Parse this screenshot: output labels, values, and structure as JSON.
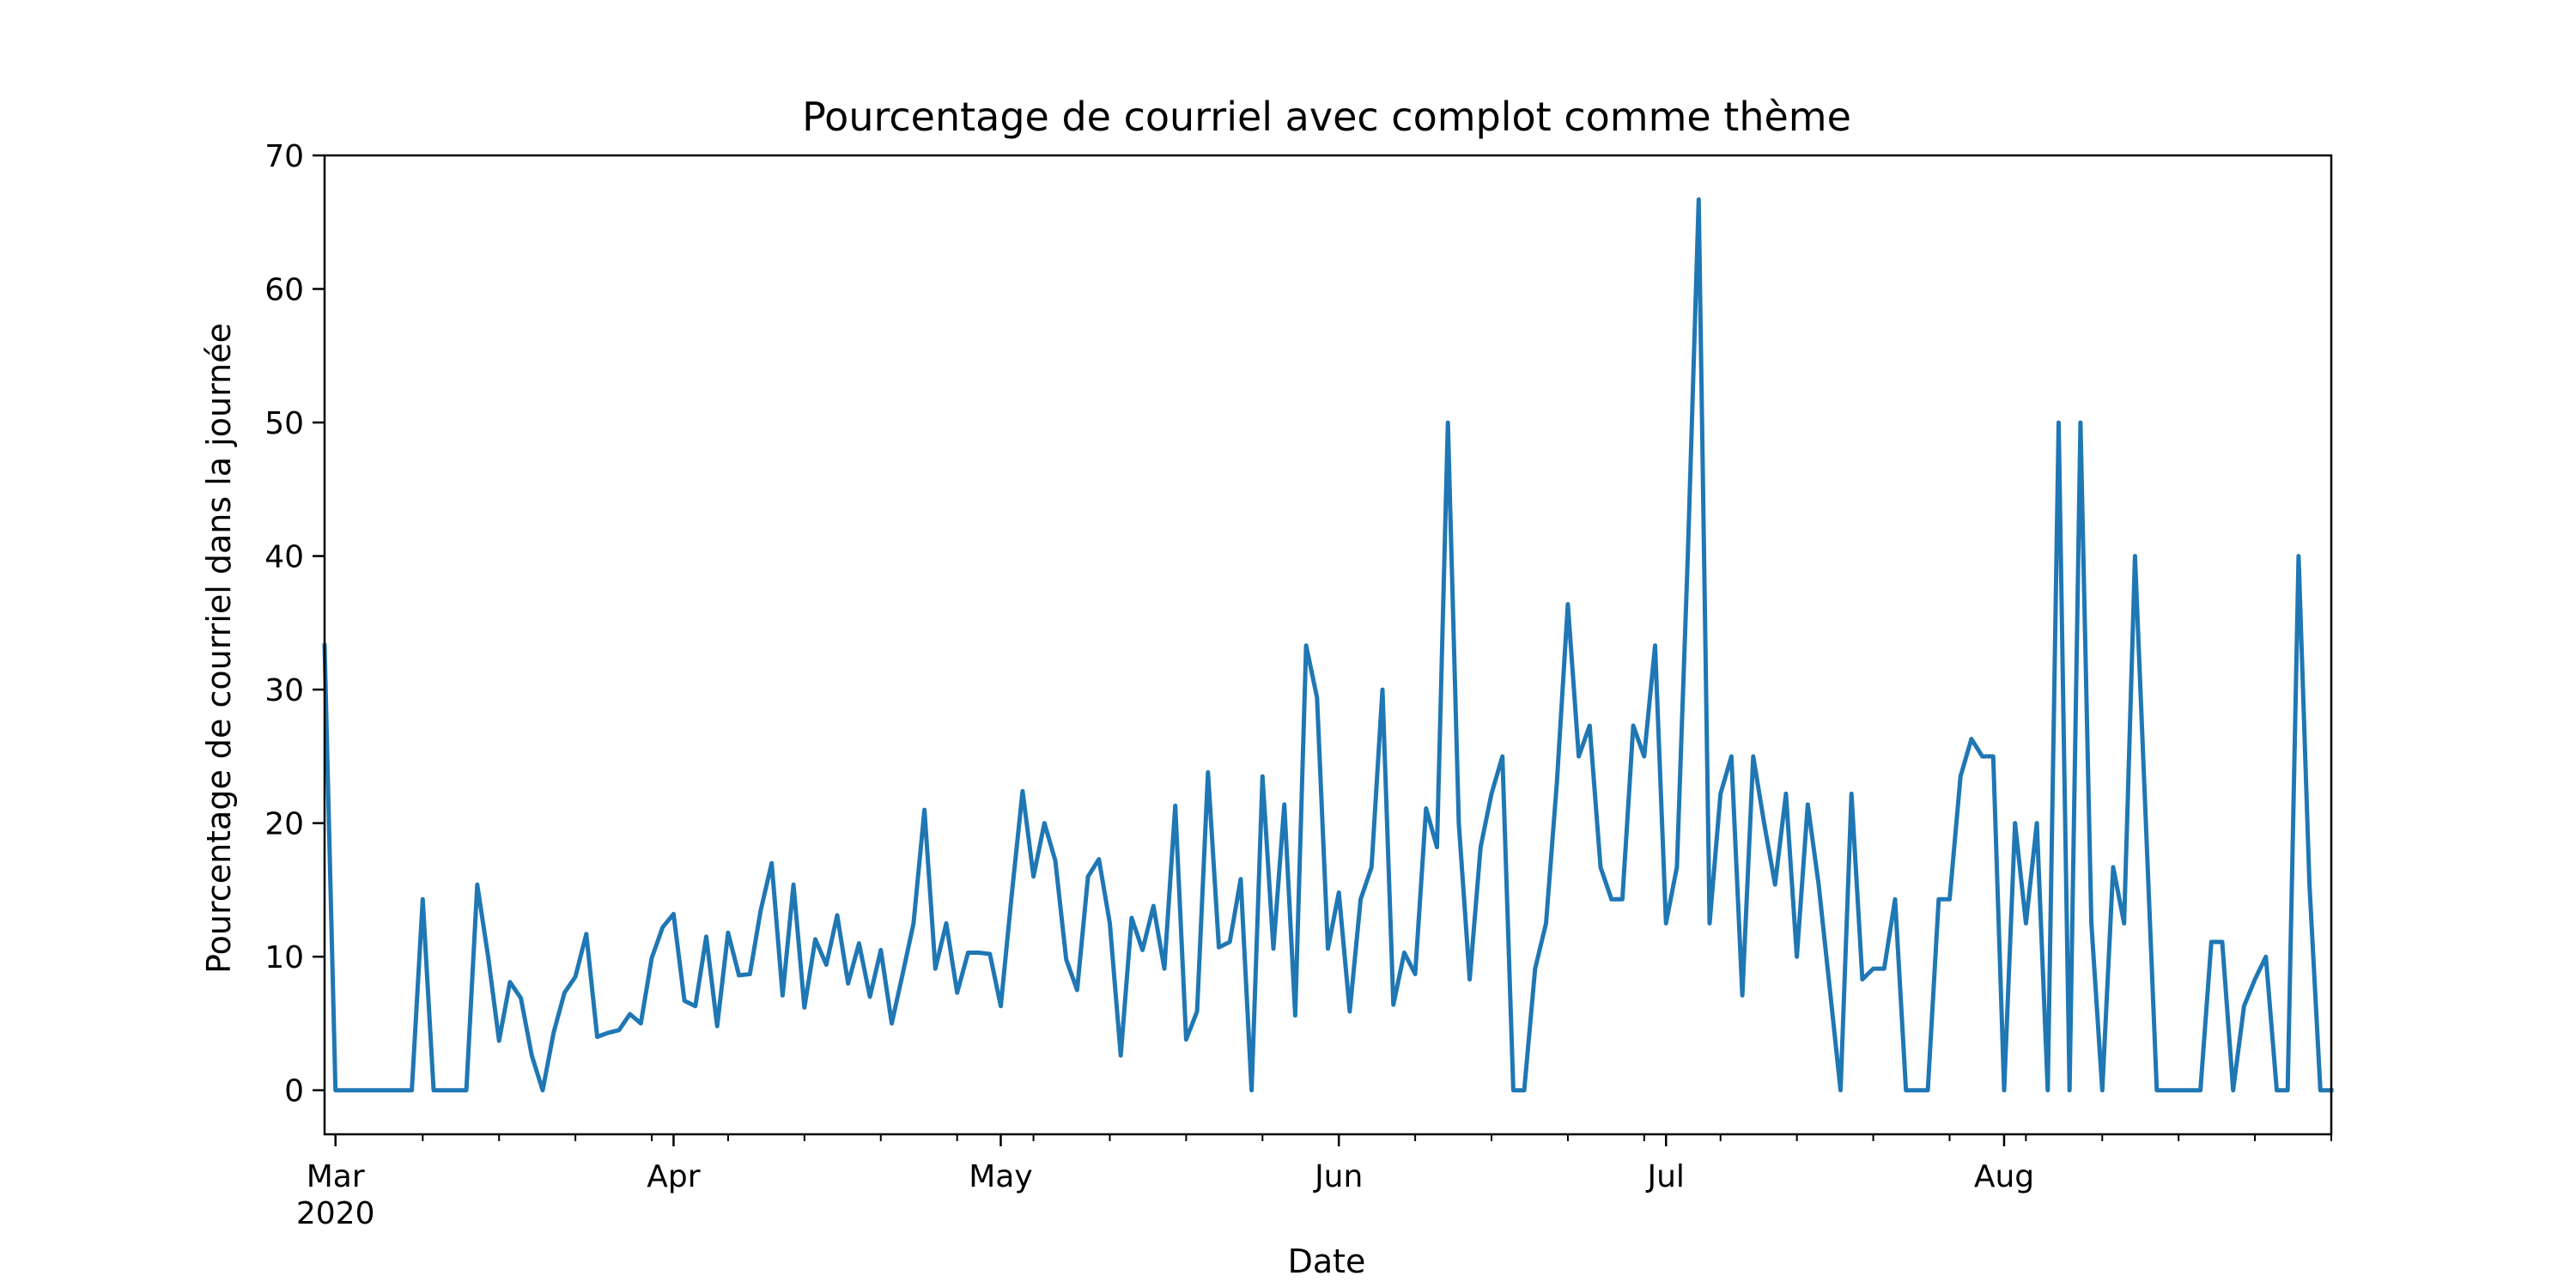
{
  "chart_data": {
    "type": "line",
    "title": "Pourcentage de courriel avec complot comme thème",
    "xlabel": "Date",
    "ylabel": "Pourcentage de courriel dans la journée",
    "ylim": [
      -3.3,
      70
    ],
    "yticks": [
      0,
      10,
      20,
      30,
      40,
      50,
      60,
      70
    ],
    "xlim": [
      "2020-02-29",
      "2020-08-31"
    ],
    "xticks": [
      {
        "date": "2020-03-01",
        "label": "Mar",
        "sublabel": "2020"
      },
      {
        "date": "2020-04-01",
        "label": "Apr"
      },
      {
        "date": "2020-05-01",
        "label": "May"
      },
      {
        "date": "2020-06-01",
        "label": "Jun"
      },
      {
        "date": "2020-07-01",
        "label": "Jul"
      },
      {
        "date": "2020-08-01",
        "label": "Aug"
      }
    ],
    "minor_xticks": [
      "2020-03-09",
      "2020-03-16",
      "2020-03-23",
      "2020-03-30",
      "2020-04-06",
      "2020-04-13",
      "2020-04-20",
      "2020-04-27",
      "2020-05-04",
      "2020-05-11",
      "2020-05-18",
      "2020-05-25",
      "2020-06-08",
      "2020-06-15",
      "2020-06-22",
      "2020-06-29",
      "2020-07-06",
      "2020-07-13",
      "2020-07-20",
      "2020-07-27",
      "2020-08-03",
      "2020-08-10",
      "2020-08-17",
      "2020-08-24",
      "2020-08-31"
    ],
    "grid": false,
    "series": [
      {
        "color": "#1f77b4",
        "start_date": "2020-02-29",
        "values": [
          33.3,
          0,
          0,
          0,
          0,
          0,
          0,
          0,
          0,
          14.3,
          0,
          0,
          0,
          0,
          15.4,
          10,
          3.7,
          8.1,
          6.9,
          2.6,
          0,
          4.3,
          7.3,
          8.5,
          11.7,
          4,
          4.3,
          4.5,
          5.7,
          5,
          9.9,
          12.2,
          13.2,
          6.7,
          6.3,
          11.5,
          4.8,
          11.8,
          8.6,
          8.7,
          13.5,
          17,
          7.1,
          15.4,
          6.2,
          11.3,
          9.4,
          13.1,
          8,
          11,
          7,
          10.5,
          5,
          8.7,
          12.5,
          21,
          9.1,
          12.5,
          7.3,
          10.3,
          10.3,
          10.2,
          6.3,
          14.6,
          22.4,
          16,
          20,
          17.2,
          9.8,
          7.5,
          16,
          17.3,
          12.5,
          2.6,
          12.9,
          10.5,
          13.8,
          9.1,
          21.3,
          3.8,
          5.9,
          23.8,
          10.7,
          11.1,
          15.8,
          0,
          23.5,
          10.6,
          21.4,
          5.6,
          33.3,
          29.4,
          10.6,
          14.8,
          5.9,
          14.3,
          16.7,
          30,
          6.4,
          10.3,
          8.7,
          21.1,
          18.2,
          50,
          20,
          8.3,
          18.2,
          22.2,
          25,
          0,
          0,
          9.1,
          12.5,
          23.1,
          36.4,
          25,
          27.3,
          16.7,
          14.3,
          14.3,
          27.3,
          25,
          33.3,
          12.5,
          16.7,
          40,
          66.7,
          12.5,
          22.2,
          25,
          7.1,
          25,
          20,
          15.4,
          22.2,
          10,
          21.4,
          15.4,
          7.7,
          0,
          22.2,
          8.3,
          9.1,
          9.1,
          14.3,
          0,
          0,
          0,
          14.3,
          14.3,
          23.5,
          26.3,
          25,
          25,
          0,
          20,
          12.5,
          20,
          0,
          50,
          0,
          50,
          12.5,
          0,
          16.7,
          12.5,
          40,
          20,
          0,
          0,
          0,
          0,
          0,
          11.1,
          11.1,
          0,
          6.3,
          8.3,
          10,
          0,
          0,
          40,
          15.4,
          0,
          0
        ]
      }
    ]
  }
}
